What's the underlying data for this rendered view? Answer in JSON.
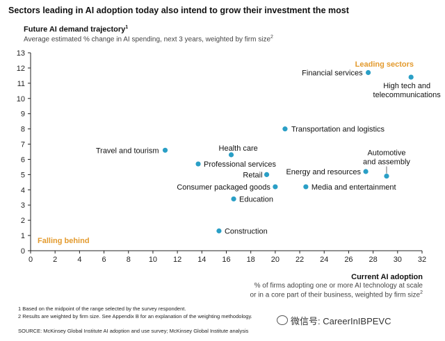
{
  "header": {
    "title": "Sectors leading in AI adoption today also intend to grow their investment the most",
    "y_title": "Future AI demand trajectory",
    "y_title_note": "1",
    "y_subtitle": "Average estimated % change in AI spending, next 3 years, weighted by firm size",
    "y_subtitle_note": "2"
  },
  "x_axis_caption": {
    "title": "Current AI adoption",
    "line1": "% of firms adopting one or more AI technology at scale",
    "line2": "or in a core part of their business, weighted by firm size",
    "line2_note": "2"
  },
  "footnotes": [
    "1  Based on the midpoint of the range selected by the survey respondent.",
    "2  Results are weighted by firm size. See Appendix B for an explanation of the weighting methodology."
  ],
  "source": "SOURCE:  McKinsey Global Institute AI adoption and use survey; McKinsey Global Institute analysis",
  "watermark": "微信号: CareerInIBPEVC",
  "colors": {
    "point": "#2a9fc6",
    "zone_label": "#e39a2d",
    "axis": "#222222"
  },
  "chart_data": {
    "type": "scatter",
    "xlim": [
      0,
      32
    ],
    "ylim": [
      0,
      13
    ],
    "x_ticks": [
      0,
      2,
      4,
      6,
      8,
      10,
      12,
      14,
      16,
      18,
      20,
      22,
      24,
      26,
      28,
      30,
      32
    ],
    "y_ticks": [
      0,
      1,
      2,
      3,
      4,
      5,
      6,
      7,
      8,
      9,
      10,
      11,
      12,
      13
    ],
    "grid": false,
    "points": [
      {
        "label": "Financial services",
        "x": 27.6,
        "y": 11.7
      },
      {
        "label": "High tech and telecommunications",
        "x": 31.1,
        "y": 11.4
      },
      {
        "label": "Transportation and logistics",
        "x": 20.8,
        "y": 8.0
      },
      {
        "label": "Travel and tourism",
        "x": 11.0,
        "y": 6.6
      },
      {
        "label": "Health care",
        "x": 16.4,
        "y": 6.3
      },
      {
        "label": "Professional services",
        "x": 13.7,
        "y": 5.7
      },
      {
        "label": "Retail",
        "x": 19.3,
        "y": 5.0
      },
      {
        "label": "Consumer packaged goods",
        "x": 20.0,
        "y": 4.2
      },
      {
        "label": "Education",
        "x": 16.6,
        "y": 3.4
      },
      {
        "label": "Construction",
        "x": 15.4,
        "y": 1.3
      },
      {
        "label": "Energy and resources",
        "x": 27.4,
        "y": 5.2
      },
      {
        "label": "Automotive and assembly",
        "x": 29.1,
        "y": 4.9
      },
      {
        "label": "Media and entertainment",
        "x": 22.5,
        "y": 4.2
      }
    ],
    "annotations": {
      "leading": "Leading sectors",
      "falling": "Falling behind"
    }
  }
}
